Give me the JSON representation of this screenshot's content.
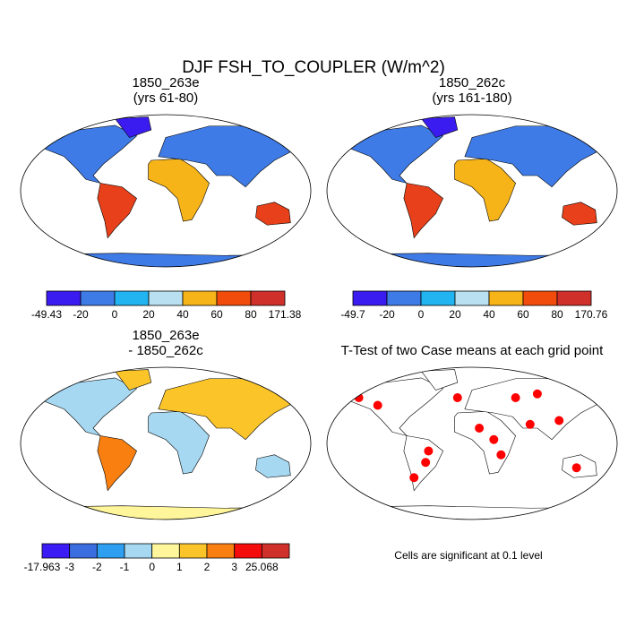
{
  "title": "DJF FSH_TO_COUPLER (W/m^2)",
  "panels": [
    {
      "title": [
        "1850_263e",
        "(yrs 61-80)"
      ],
      "colorbar": {
        "colors": [
          "#3b1cf0",
          "#3f7be6",
          "#22b4f0",
          "#b8e0f0",
          "#f7b418",
          "#f24c0c",
          "#d0302a"
        ],
        "labels": [
          "-49.43",
          "-20",
          "0",
          "20",
          "40",
          "60",
          "80",
          "171.38"
        ]
      }
    },
    {
      "title": [
        "1850_262c",
        "(yrs 161-180)"
      ],
      "colorbar": {
        "colors": [
          "#3b1cf0",
          "#3f7be6",
          "#22b4f0",
          "#b8e0f0",
          "#f7b418",
          "#f24c0c",
          "#d0302a"
        ],
        "labels": [
          "-49.7",
          "-20",
          "0",
          "20",
          "40",
          "60",
          "80",
          "170.76"
        ]
      }
    },
    {
      "title": [
        "1850_263e",
        "- 1850_262c"
      ],
      "colorbar": {
        "colors": [
          "#3c1cf5",
          "#3a6ee0",
          "#2e9ff0",
          "#a6d8f2",
          "#fff59a",
          "#fbc52a",
          "#f98010",
          "#f50c0c",
          "#d0302a"
        ],
        "labels": [
          "-17.963",
          "-3",
          "-2",
          "-1",
          "0",
          "1",
          "2",
          "3",
          "25.068"
        ]
      }
    },
    {
      "title": [
        "T-Test of two Case means at each grid point"
      ],
      "note": "Cells are significant at 0.1 level"
    }
  ]
}
